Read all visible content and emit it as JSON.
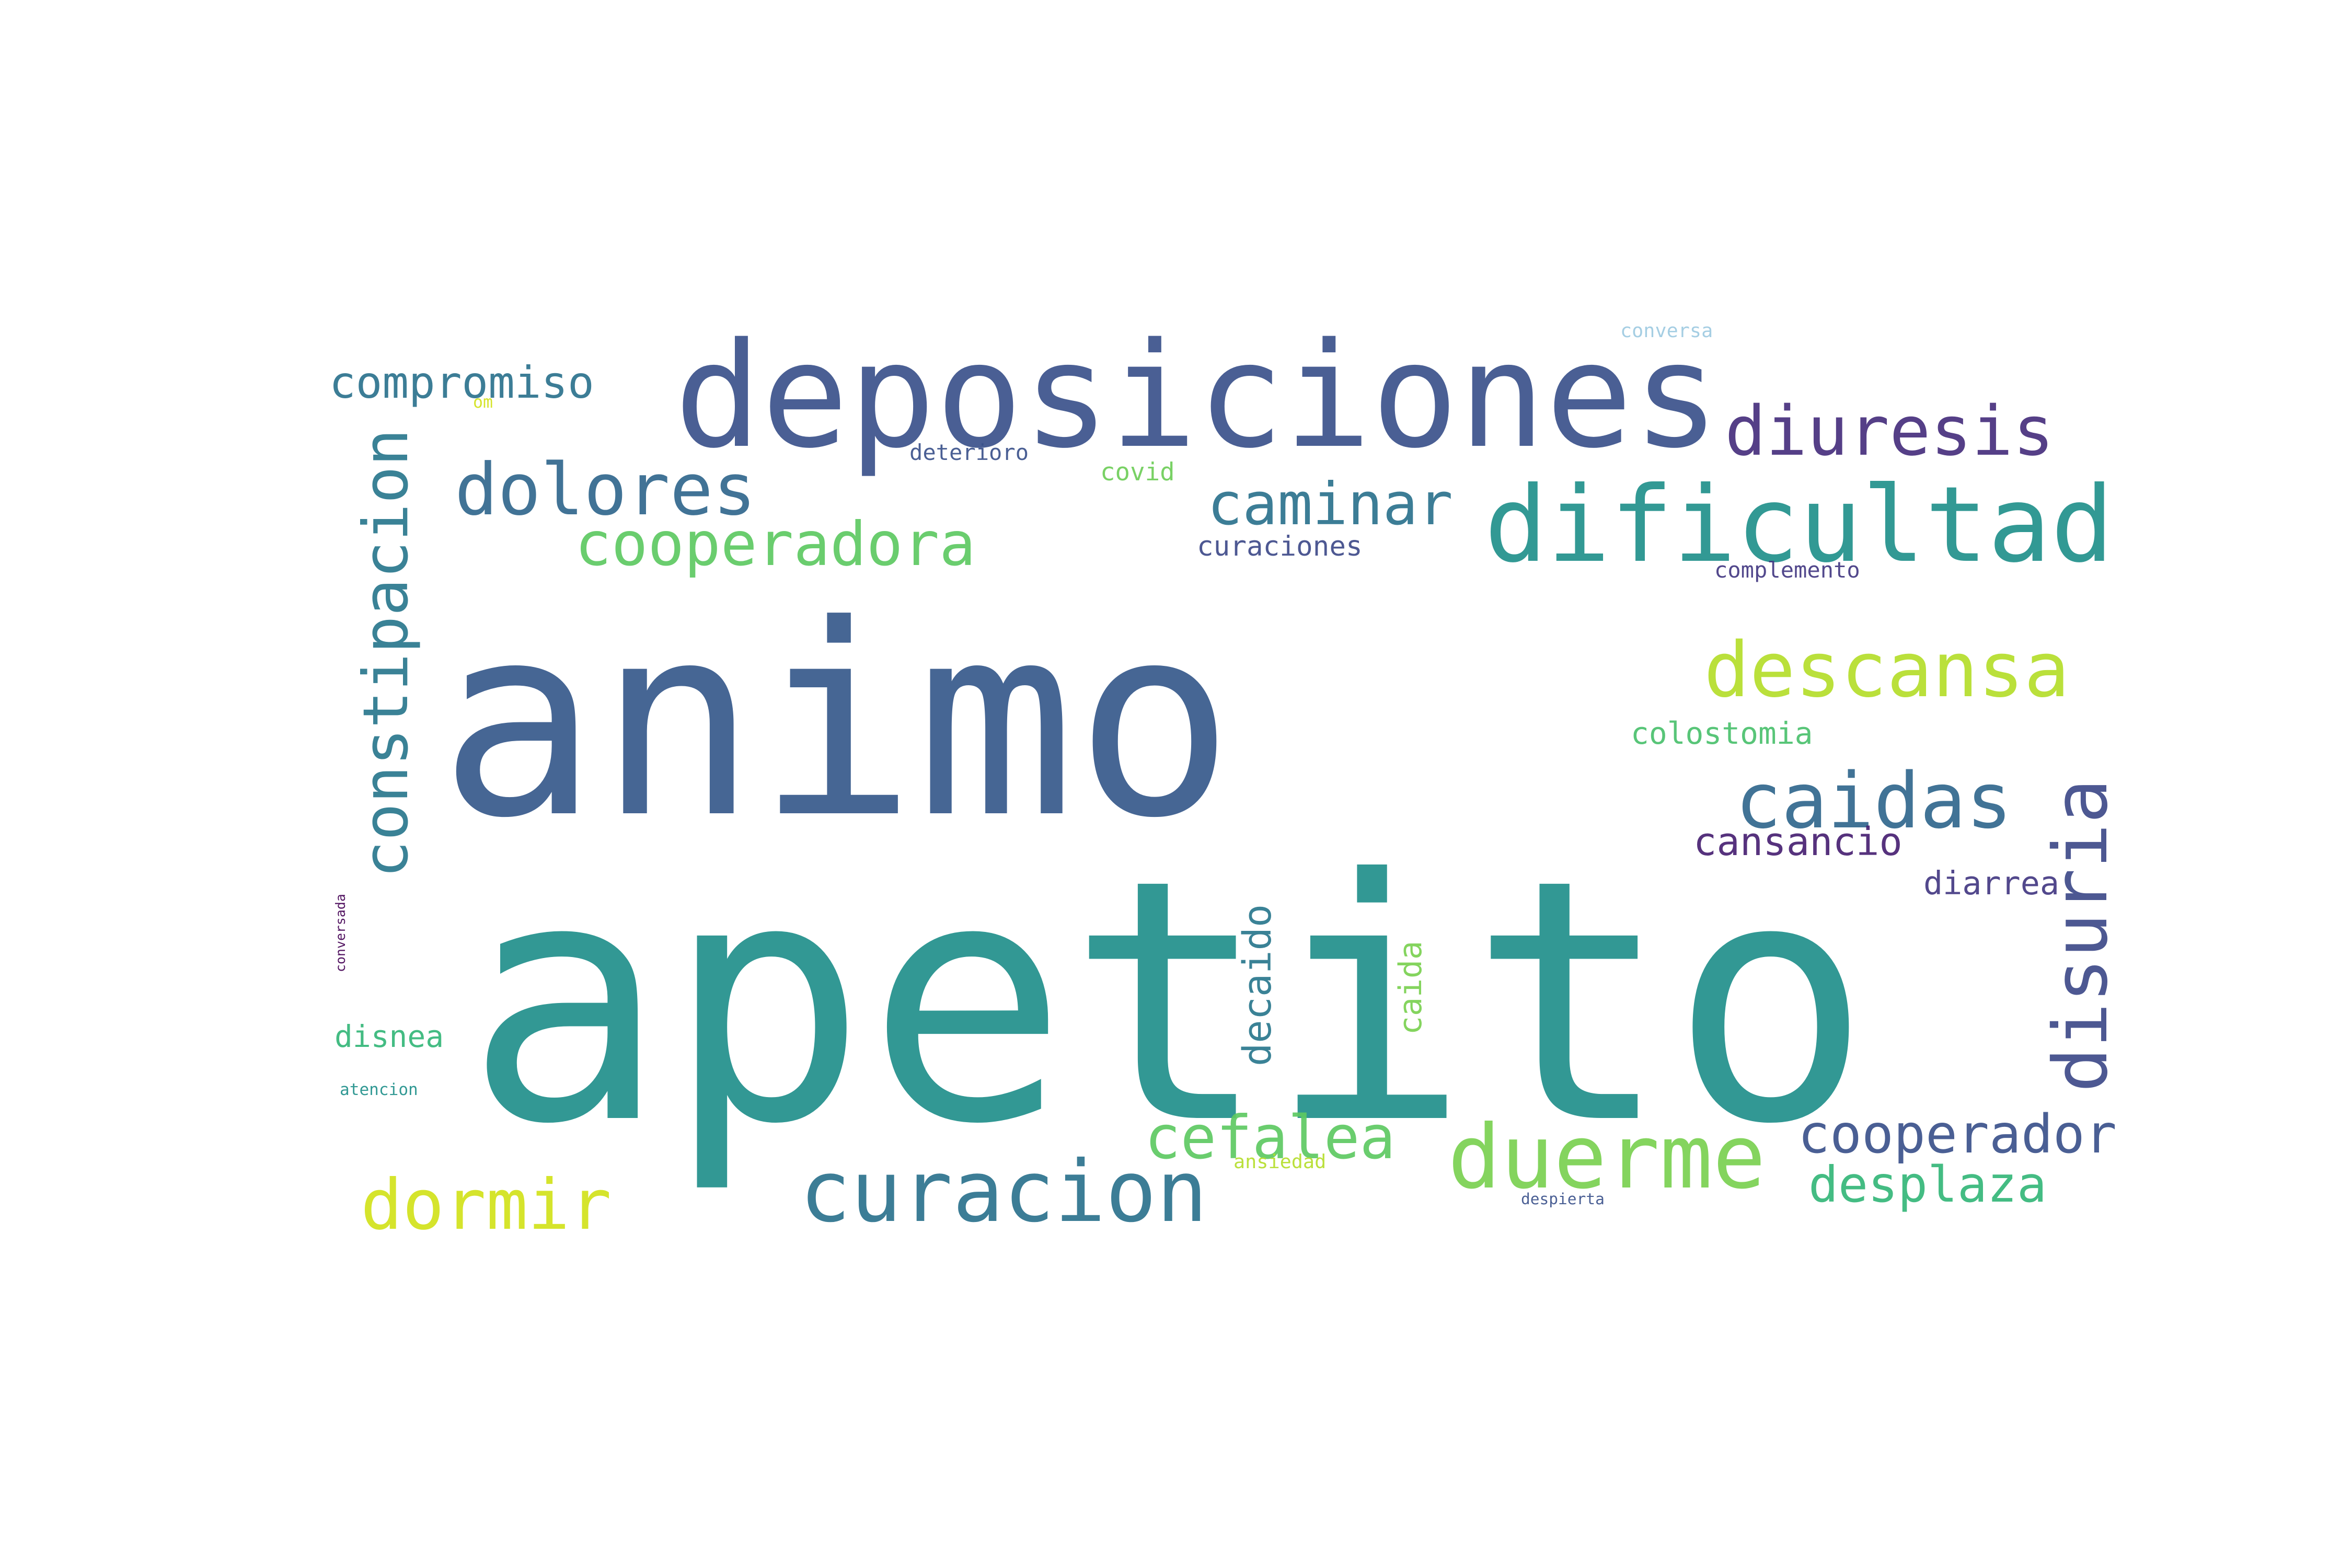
{
  "words": [
    {
      "text": "animo",
      "color": "#375a8c"
    },
    {
      "text": "apetito",
      "color": "#21908c"
    },
    {
      "text": "deposiciones",
      "color": "#3b528b"
    },
    {
      "text": "dificultad",
      "color": "#21918c"
    },
    {
      "text": "diuresis",
      "color": "#472f7d"
    },
    {
      "text": "dolores",
      "color": "#31688e"
    },
    {
      "text": "caminar",
      "color": "#2c728e"
    },
    {
      "text": "cooperadora",
      "color": "#5ec962"
    },
    {
      "text": "compromiso",
      "color": "#2c728e"
    },
    {
      "text": "constipacion",
      "color": "#2a788e"
    },
    {
      "text": "descansa",
      "color": "#b5de2b"
    },
    {
      "text": "caidas",
      "color": "#31688e"
    },
    {
      "text": "disuria",
      "color": "#3e4a89"
    },
    {
      "text": "curacion",
      "color": "#2c728e"
    },
    {
      "text": "duerme",
      "color": "#7ad151"
    },
    {
      "text": "dormir",
      "color": "#d2e21b"
    },
    {
      "text": "cefalea",
      "color": "#5ec962"
    },
    {
      "text": "cooperador",
      "color": "#3b528b"
    },
    {
      "text": "desplaza",
      "color": "#35b779"
    },
    {
      "text": "cansancio",
      "color": "#482173"
    },
    {
      "text": "diarrea",
      "color": "#443983"
    },
    {
      "text": "colostomia",
      "color": "#4ac16d"
    },
    {
      "text": "decaido",
      "color": "#2a788e"
    },
    {
      "text": "caida",
      "color": "#7ad151"
    },
    {
      "text": "disnea",
      "color": "#35b779"
    },
    {
      "text": "covid",
      "color": "#6ece58"
    },
    {
      "text": "curaciones",
      "color": "#3e4a89"
    },
    {
      "text": "complemento",
      "color": "#443983"
    },
    {
      "text": "deterioro",
      "color": "#3b528b"
    },
    {
      "text": "conversa",
      "color": "#9ecae1"
    },
    {
      "text": "om",
      "color": "#d2e21b"
    },
    {
      "text": "conversada",
      "color": "#440154"
    },
    {
      "text": "atencion",
      "color": "#21918c"
    },
    {
      "text": "ansiedad",
      "color": "#b5de2b"
    },
    {
      "text": "despierta",
      "color": "#3b528b"
    }
  ]
}
